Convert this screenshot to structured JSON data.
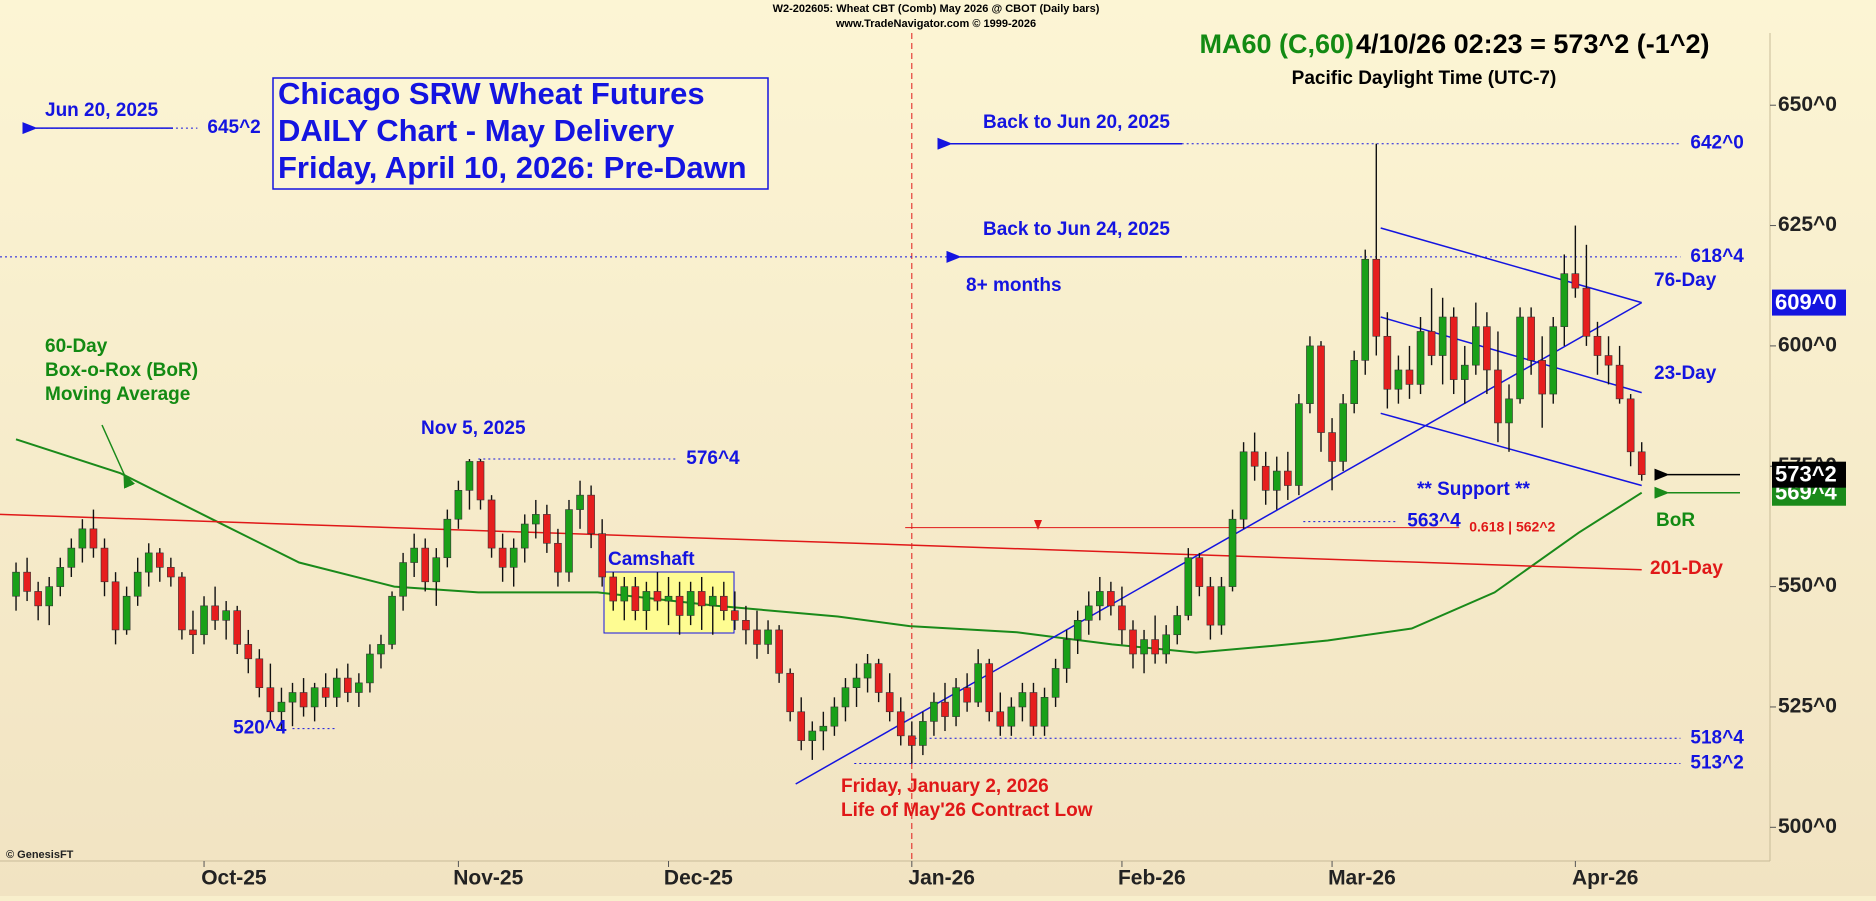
{
  "header": [
    "W2-202605:  Wheat CBT (Comb) May 2026 @ CBOT  (Daily bars)",
    "www.TradeNavigator.com © 1999-2026"
  ],
  "ma_label": "MA60 (C,60)",
  "ma_readout": "4/10/26 02:23 = 573^2 (-1^2)",
  "timezone": "Pacific Daylight Time (UTC-7)",
  "chart_data": {
    "type": "candlestick",
    "title": [
      "Chicago SRW Wheat Futures",
      "DAILY Chart - May Delivery",
      "Friday, April 10, 2026: Pre-Dawn"
    ],
    "xlim": [
      -1.45,
      158.6
    ],
    "xticks": [
      {
        "value": 17,
        "label": "Oct-25"
      },
      {
        "value": 40,
        "label": "Nov-25"
      },
      {
        "value": 59,
        "label": "Dec-25"
      },
      {
        "value": 81,
        "label": "Jan-26"
      },
      {
        "value": 100,
        "label": "Feb-26"
      },
      {
        "value": 119,
        "label": "Mar-26"
      },
      {
        "value": 141,
        "label": "Apr-26"
      }
    ],
    "ylim": [
      493,
      665
    ],
    "yticks": [
      {
        "value": 500,
        "label": "500^0"
      },
      {
        "value": 525,
        "label": "525^0"
      },
      {
        "value": 550,
        "label": "550^0"
      },
      {
        "value": 575,
        "label": "575^0"
      },
      {
        "value": 600,
        "label": "600^0"
      },
      {
        "value": 625,
        "label": "625^0"
      },
      {
        "value": 650,
        "label": "650^0"
      }
    ],
    "up_color": "#19a019",
    "down_color": "#e61e1e",
    "ohlc": [
      [
        548,
        555,
        545,
        553
      ],
      [
        553,
        556,
        547,
        549
      ],
      [
        549,
        551,
        543,
        546
      ],
      [
        546,
        552,
        542,
        550
      ],
      [
        550,
        556,
        548,
        554
      ],
      [
        554,
        560,
        552,
        558
      ],
      [
        558,
        564,
        555,
        562
      ],
      [
        562,
        566,
        556,
        558
      ],
      [
        558,
        560,
        548,
        551
      ],
      [
        551,
        553,
        538,
        541
      ],
      [
        541,
        550,
        540,
        548
      ],
      [
        548,
        556,
        546,
        553
      ],
      [
        553,
        559,
        550,
        557
      ],
      [
        557,
        558,
        551,
        554
      ],
      [
        554,
        556,
        550,
        552
      ],
      [
        552,
        553,
        539,
        541
      ],
      [
        541,
        545,
        536,
        540
      ],
      [
        540,
        548,
        538,
        546
      ],
      [
        546,
        550,
        541,
        543
      ],
      [
        543,
        547,
        539,
        545
      ],
      [
        545,
        546,
        536,
        538
      ],
      [
        538,
        541,
        532,
        535
      ],
      [
        535,
        537,
        527,
        529
      ],
      [
        529,
        534,
        522,
        524
      ],
      [
        524,
        529,
        520,
        526
      ],
      [
        526,
        530,
        521,
        528
      ],
      [
        528,
        531,
        523,
        525
      ],
      [
        525,
        530,
        522,
        529
      ],
      [
        529,
        532,
        525,
        527
      ],
      [
        527,
        533,
        525,
        531
      ],
      [
        531,
        534,
        526,
        528
      ],
      [
        528,
        532,
        525,
        530
      ],
      [
        530,
        538,
        528,
        536
      ],
      [
        536,
        540,
        533,
        538
      ],
      [
        538,
        549,
        537,
        548
      ],
      [
        548,
        557,
        545,
        555
      ],
      [
        555,
        561,
        552,
        558
      ],
      [
        558,
        560,
        549,
        551
      ],
      [
        551,
        558,
        546,
        556
      ],
      [
        556,
        566,
        554,
        564
      ],
      [
        564,
        572,
        562,
        570
      ],
      [
        570,
        576.5,
        566,
        576
      ],
      [
        576,
        576.5,
        566,
        568
      ],
      [
        568,
        569,
        556,
        558
      ],
      [
        558,
        561,
        551,
        554
      ],
      [
        554,
        560,
        550,
        558
      ],
      [
        558,
        565,
        555,
        563
      ],
      [
        563,
        568,
        560,
        565
      ],
      [
        565,
        567,
        557,
        559
      ],
      [
        559,
        562,
        550,
        553
      ],
      [
        553,
        568,
        551,
        566
      ],
      [
        566,
        572,
        562,
        569
      ],
      [
        569,
        571,
        558,
        561
      ],
      [
        561,
        564,
        550,
        552
      ],
      [
        552,
        553,
        545,
        547
      ],
      [
        547,
        552,
        543,
        550
      ],
      [
        550,
        552,
        543,
        545
      ],
      [
        545,
        551,
        541,
        549
      ],
      [
        549,
        553,
        545,
        547
      ],
      [
        547,
        552,
        542,
        548
      ],
      [
        548,
        551,
        540,
        544
      ],
      [
        544,
        551,
        542,
        549
      ],
      [
        549,
        552,
        541,
        546
      ],
      [
        546,
        550,
        540,
        548
      ],
      [
        548,
        551,
        543,
        545
      ],
      [
        545,
        549,
        541,
        543
      ],
      [
        543,
        546,
        538,
        541
      ],
      [
        541,
        545,
        535,
        538
      ],
      [
        538,
        543,
        536,
        541
      ],
      [
        541,
        542,
        530,
        532
      ],
      [
        532,
        533,
        522,
        524
      ],
      [
        524,
        527,
        516,
        518
      ],
      [
        518,
        522,
        514,
        520
      ],
      [
        520,
        524,
        516,
        521
      ],
      [
        521,
        527,
        519,
        525
      ],
      [
        525,
        531,
        522,
        529
      ],
      [
        529,
        534,
        525,
        531
      ],
      [
        531,
        536,
        528,
        534
      ],
      [
        534,
        535,
        526,
        528
      ],
      [
        528,
        532,
        522,
        524
      ],
      [
        524,
        527,
        517,
        519
      ],
      [
        519,
        522,
        513.25,
        517
      ],
      [
        517,
        524,
        515,
        522
      ],
      [
        522,
        528,
        519,
        526
      ],
      [
        526,
        530,
        520,
        523
      ],
      [
        523,
        531,
        521,
        529
      ],
      [
        529,
        532,
        524,
        526
      ],
      [
        526,
        537,
        525,
        534
      ],
      [
        534,
        535,
        522,
        524
      ],
      [
        524,
        528,
        519,
        521
      ],
      [
        521,
        527,
        519,
        525
      ],
      [
        525,
        530,
        522,
        528
      ],
      [
        528,
        530,
        519,
        521
      ],
      [
        521,
        529,
        519,
        527
      ],
      [
        527,
        535,
        525,
        533
      ],
      [
        533,
        541,
        530,
        539
      ],
      [
        539,
        545,
        536,
        543
      ],
      [
        543,
        549,
        540,
        546
      ],
      [
        546,
        552,
        543,
        549
      ],
      [
        549,
        551,
        544,
        546
      ],
      [
        546,
        550,
        538,
        541
      ],
      [
        541,
        543,
        533,
        536
      ],
      [
        536,
        541,
        532,
        539
      ],
      [
        539,
        544,
        534,
        536
      ],
      [
        536,
        542,
        534,
        540
      ],
      [
        540,
        546,
        538,
        544
      ],
      [
        544,
        558,
        543,
        556
      ],
      [
        556,
        557,
        548,
        550
      ],
      [
        550,
        552,
        539,
        542
      ],
      [
        542,
        552,
        540,
        550
      ],
      [
        550,
        566,
        549,
        564
      ],
      [
        564,
        580,
        562,
        578
      ],
      [
        578,
        582,
        572,
        575
      ],
      [
        575,
        578,
        567,
        570
      ],
      [
        570,
        577,
        566,
        574
      ],
      [
        574,
        578,
        568,
        571
      ],
      [
        571,
        590,
        569,
        588
      ],
      [
        588,
        602,
        586,
        600
      ],
      [
        600,
        601,
        578,
        582
      ],
      [
        582,
        585,
        570,
        576
      ],
      [
        576,
        590,
        574,
        588
      ],
      [
        588,
        599,
        586,
        597
      ],
      [
        597,
        620,
        594,
        618
      ],
      [
        618,
        642,
        598,
        602
      ],
      [
        602,
        607,
        587,
        591
      ],
      [
        591,
        598,
        588,
        595
      ],
      [
        595,
        600,
        589,
        592
      ],
      [
        592,
        606,
        590,
        603
      ],
      [
        603,
        612,
        596,
        598
      ],
      [
        598,
        610,
        592,
        606
      ],
      [
        606,
        608,
        590,
        593
      ],
      [
        593,
        600,
        588,
        596
      ],
      [
        596,
        609,
        594,
        604
      ],
      [
        604,
        607,
        590,
        595
      ],
      [
        595,
        603,
        580,
        584
      ],
      [
        584,
        592,
        578,
        589
      ],
      [
        589,
        608,
        588,
        606
      ],
      [
        606,
        608,
        594,
        597
      ],
      [
        597,
        602,
        583,
        590
      ],
      [
        590,
        606,
        588,
        604
      ],
      [
        604,
        619,
        600,
        615
      ],
      [
        615,
        625,
        610,
        612
      ],
      [
        612,
        621,
        600,
        602
      ],
      [
        602,
        605,
        594,
        598
      ],
      [
        598,
        602,
        592,
        596
      ],
      [
        596,
        600,
        588,
        589
      ],
      [
        589,
        590,
        575,
        578
      ],
      [
        578,
        580,
        572,
        573.25
      ]
    ],
    "lines": [
      {
        "color": "#1a8a1a",
        "x": [
          0,
          9.4,
          18,
          25.6,
          34.2,
          41.8,
          52.6,
          63.4,
          74.3,
          80.8,
          90.5,
          99.1,
          106.7,
          113.2,
          118.6,
          126.2,
          133.7,
          141.3,
          147
        ],
        "values": [
          580.6,
          573.6,
          563.7,
          555,
          550,
          548.8,
          548.8,
          546,
          543.8,
          541.8,
          540.5,
          538,
          536.3,
          537.6,
          538.8,
          541.3,
          548.8,
          561.2,
          569.5
        ]
      },
      {
        "color": "#e01818",
        "x": [
          -1.45,
          147
        ],
        "values": [
          565,
          553.5
        ]
      },
      {
        "color": "#1414e0",
        "x": [
          70.5,
          147
        ],
        "values": [
          509,
          609
        ]
      },
      {
        "color": "#1414e0",
        "x": [
          123.4,
          147
        ],
        "values": [
          624.5,
          609
        ]
      },
      {
        "color": "#1414e0",
        "x": [
          123.4,
          147
        ],
        "values": [
          606,
          590.3
        ]
      },
      {
        "color": "#1414e0",
        "x": [
          123.4,
          147
        ],
        "values": [
          586,
          571
        ]
      }
    ],
    "levels": [
      {
        "value": 645.25,
        "label": "645^2",
        "from": 1.8,
        "to": 16.4,
        "color": "#1414e0"
      },
      {
        "value": 642,
        "label": "642^0",
        "from": 105.4,
        "to": 150.5,
        "color": "#1414e0"
      },
      {
        "value": 618.5,
        "label": "618^4",
        "from": -1.45,
        "to": 150.5,
        "color": "#1414e0"
      },
      {
        "value": 576.5,
        "label": "576^4",
        "from": 41.8,
        "to": 59.7,
        "color": "#1414e0"
      },
      {
        "value": 563.5,
        "label": "563^4",
        "from": 116.4,
        "to": 124.9,
        "color": "#1414e0"
      },
      {
        "value": 520.5,
        "label": "520^4",
        "from": 25,
        "to": 28.9,
        "color": "#1414e0"
      },
      {
        "value": 518.5,
        "label": "518^4",
        "from": 80.8,
        "to": 150.5,
        "color": "#1414e0"
      },
      {
        "value": 513.25,
        "label": "513^2",
        "from": 75.8,
        "to": 150.5,
        "color": "#1414e0"
      },
      {
        "value": 562.25,
        "label": "0.618 | 562^2",
        "from": 80.4,
        "to": 130.5,
        "color": "#e01818"
      }
    ],
    "vline_x": 81,
    "price_tags": [
      {
        "value": 609,
        "label": "609^0",
        "color": "#1414e0"
      },
      {
        "value": 569.5,
        "label": "569^4",
        "color": "#1a8a1a"
      },
      {
        "value": 573.25,
        "label": "573^2",
        "color": "#000000"
      }
    ],
    "annotations": [
      "Jun 20, 2025",
      "60-Day",
      "Box-o-Rox (BoR)",
      "Moving Average",
      "Nov 5, 2025",
      "Camshaft",
      "Back to Jun 20, 2025",
      "Back to Jun 24, 2025",
      "8+ months",
      "76-Day",
      "23-Day",
      "** Support **",
      "BoR",
      "201-Day",
      "Friday, January 2, 2026",
      "Life of May'26 Contract Low",
      "© GenesisFT"
    ]
  }
}
